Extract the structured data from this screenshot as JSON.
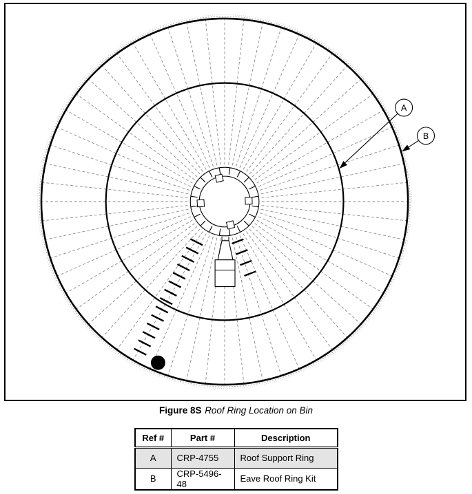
{
  "figure": {
    "caption_label": "Figure 8S",
    "caption_title": "Roof Ring Location on Bin",
    "callouts": [
      {
        "label": "A",
        "points_to": "inner roof support ring"
      },
      {
        "label": "B",
        "points_to": "outer eave ring"
      }
    ]
  },
  "parts_table": {
    "headers": [
      "Ref #",
      "Part #",
      "Description"
    ],
    "rows": [
      {
        "ref": "A",
        "part": "CRP-4755",
        "description": "Roof Support Ring",
        "shaded": true
      },
      {
        "ref": "B",
        "part": "CRP-5496-48",
        "description": "Eave Roof Ring Kit",
        "shaded": false
      }
    ]
  },
  "colors": {
    "line": "#000000",
    "spoke": "#8a8a8a",
    "eave_fuzz": "#b8b8b8",
    "eave_fuzz_outer": "#d8d8d8",
    "row_shade": "#e4e4e4"
  }
}
